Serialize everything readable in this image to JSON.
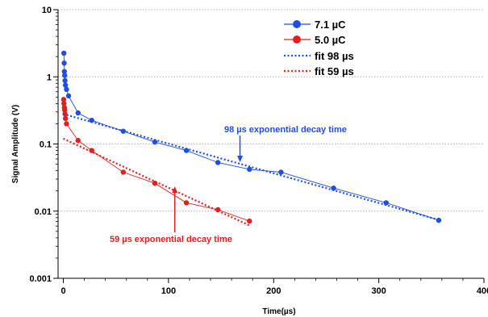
{
  "chart_data": {
    "type": "scatter",
    "title": "",
    "xlabel": "Time(µs)",
    "ylabel": "Signal Amplitude (V)",
    "xlim": [
      -5,
      400
    ],
    "ylim": [
      0.001,
      10
    ],
    "yscale": "log",
    "grid": {
      "horizontal": true,
      "vertical": false,
      "style": "dotted"
    },
    "xticks": [
      0,
      100,
      200,
      300,
      400
    ],
    "xtick_labels": [
      "0",
      "100",
      "200",
      "300",
      "400"
    ],
    "yticks": [
      0.001,
      0.01,
      0.1,
      1,
      10
    ],
    "ytick_labels": [
      "0.001",
      "0.01",
      "0.1",
      "1",
      "10"
    ],
    "legend_position": "top-right",
    "series": [
      {
        "name": "7.1 µC",
        "color": "#1f4fe0",
        "style": "line-markers",
        "x": [
          0.5,
          0.8,
          1,
          1.3,
          1.6,
          2,
          3,
          5,
          14,
          27,
          57,
          87,
          117,
          147,
          177,
          207,
          257,
          307,
          357
        ],
        "y": [
          2.25,
          1.6,
          1.2,
          1.05,
          0.88,
          0.75,
          0.65,
          0.52,
          0.29,
          0.225,
          0.155,
          0.107,
          0.08,
          0.053,
          0.042,
          0.038,
          0.022,
          0.0133,
          0.0073
        ]
      },
      {
        "name": "5.0 µC",
        "color": "#e0201e",
        "style": "line-markers",
        "x": [
          0.3,
          0.6,
          1,
          1.3,
          1.6,
          2,
          3,
          14,
          27,
          57,
          87,
          117,
          147,
          177
        ],
        "y": [
          0.46,
          0.4,
          0.35,
          0.32,
          0.28,
          0.24,
          0.2,
          0.113,
          0.08,
          0.038,
          0.026,
          0.0133,
          0.0105,
          0.0071
        ]
      },
      {
        "name": "fit 98 µs",
        "color": "#1f4fe0",
        "style": "dotted",
        "x": [
          0,
          357
        ],
        "y": [
          0.28,
          0.0074
        ]
      },
      {
        "name": "fit 59 µs",
        "color": "#e0201e",
        "style": "dotted",
        "x": [
          0,
          177
        ],
        "y": [
          0.12,
          0.0061
        ]
      }
    ],
    "annotations": [
      {
        "text": "98 µs exponential decay time",
        "color": "#1f4fe0",
        "arrow_to": [
          168,
          0.052
        ]
      },
      {
        "text": "59 µs exponential decay time",
        "color": "#e0201e",
        "arrow_to": [
          106,
          0.024
        ]
      }
    ]
  }
}
